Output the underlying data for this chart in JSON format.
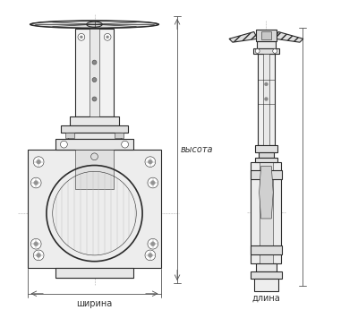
{
  "bg_color": "#ffffff",
  "line_color": "#2a2a2a",
  "dim_color": "#555555",
  "label_color": "#333333",
  "label_shirина": "ширина",
  "label_dlina": "длина",
  "label_vysota": "высота",
  "figsize": [
    4.0,
    3.46
  ],
  "dpi": 100
}
